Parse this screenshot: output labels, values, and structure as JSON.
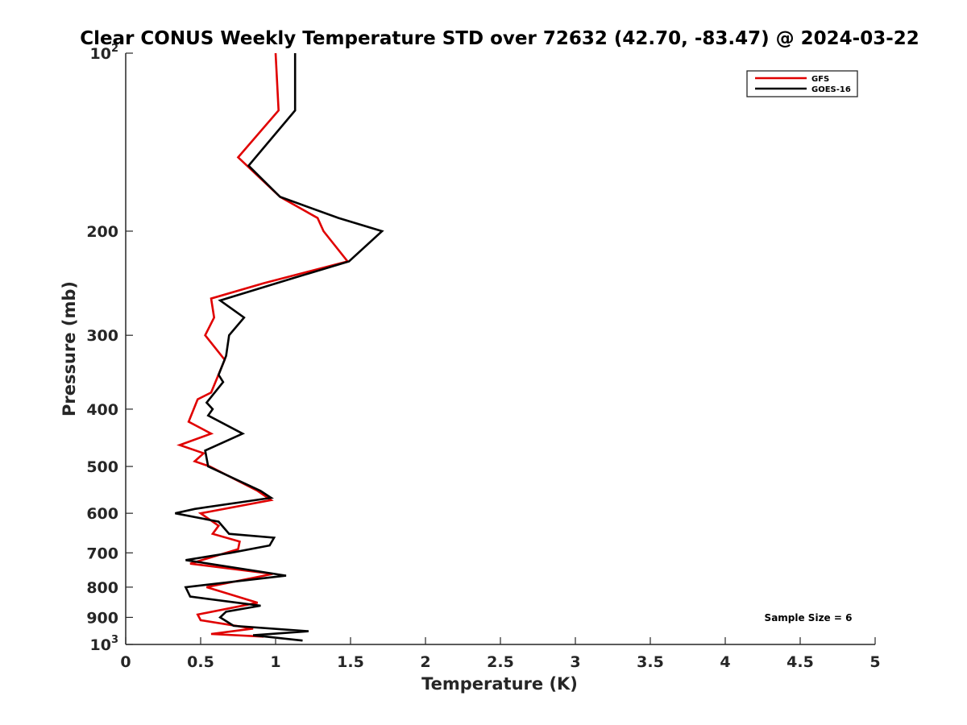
{
  "chart_data": {
    "type": "line",
    "title": "Clear CONUS Weekly Temperature STD over 72632 (42.70, -83.47) @ 2024-03-22",
    "xlabel": "Temperature (K)",
    "ylabel": "Pressure (mb)",
    "xlim": [
      0,
      5
    ],
    "ylim": [
      100,
      1000
    ],
    "y_scale": "log",
    "y_reversed": true,
    "grid": false,
    "legend_position": "top-right",
    "x_ticks": [
      "0",
      "0.5",
      "1",
      "1.5",
      "2",
      "2.5",
      "3",
      "3.5",
      "4",
      "4.5",
      "5"
    ],
    "x_tick_values": [
      0,
      0.5,
      1,
      1.5,
      2,
      2.5,
      3,
      3.5,
      4,
      4.5,
      5
    ],
    "y_ticks": [
      {
        "value": 100,
        "base": "10",
        "exp": "2"
      },
      {
        "value": 200,
        "base": "200",
        "exp": ""
      },
      {
        "value": 300,
        "base": "300",
        "exp": ""
      },
      {
        "value": 400,
        "base": "400",
        "exp": ""
      },
      {
        "value": 500,
        "base": "500",
        "exp": ""
      },
      {
        "value": 600,
        "base": "600",
        "exp": ""
      },
      {
        "value": 700,
        "base": "700",
        "exp": ""
      },
      {
        "value": 800,
        "base": "800",
        "exp": ""
      },
      {
        "value": 900,
        "base": "900",
        "exp": ""
      },
      {
        "value": 1000,
        "base": "10",
        "exp": "3"
      }
    ],
    "series": [
      {
        "name": "GFS",
        "color": "#e00000",
        "points": [
          [
            1.0,
            100
          ],
          [
            1.02,
            125
          ],
          [
            0.75,
            150
          ],
          [
            1.03,
            175
          ],
          [
            1.28,
            190
          ],
          [
            1.32,
            200
          ],
          [
            1.48,
            225
          ],
          [
            0.92,
            245
          ],
          [
            0.57,
            260
          ],
          [
            0.59,
            280
          ],
          [
            0.53,
            300
          ],
          [
            0.66,
            330
          ],
          [
            0.57,
            375
          ],
          [
            0.48,
            385
          ],
          [
            0.42,
            420
          ],
          [
            0.57,
            440
          ],
          [
            0.36,
            460
          ],
          [
            0.52,
            475
          ],
          [
            0.46,
            490
          ],
          [
            0.56,
            500
          ],
          [
            0.88,
            550
          ],
          [
            0.97,
            570
          ],
          [
            0.5,
            600
          ],
          [
            0.62,
            630
          ],
          [
            0.58,
            650
          ],
          [
            0.76,
            670
          ],
          [
            0.75,
            690
          ],
          [
            0.43,
            730
          ],
          [
            0.98,
            760
          ],
          [
            0.54,
            800
          ],
          [
            0.88,
            850
          ],
          [
            0.48,
            890
          ],
          [
            0.5,
            910
          ],
          [
            0.85,
            940
          ],
          [
            0.57,
            960
          ],
          [
            0.92,
            970
          ]
        ]
      },
      {
        "name": "GOES-16",
        "color": "#000000",
        "points": [
          [
            1.13,
            100
          ],
          [
            1.13,
            125
          ],
          [
            0.82,
            155
          ],
          [
            1.03,
            175
          ],
          [
            1.42,
            190
          ],
          [
            1.71,
            200
          ],
          [
            1.49,
            225
          ],
          [
            1.12,
            240
          ],
          [
            0.63,
            262
          ],
          [
            0.79,
            280
          ],
          [
            0.69,
            300
          ],
          [
            0.67,
            325
          ],
          [
            0.62,
            350
          ],
          [
            0.65,
            360
          ],
          [
            0.54,
            390
          ],
          [
            0.58,
            400
          ],
          [
            0.55,
            410
          ],
          [
            0.78,
            440
          ],
          [
            0.53,
            470
          ],
          [
            0.55,
            500
          ],
          [
            0.9,
            550
          ],
          [
            0.97,
            565
          ],
          [
            0.46,
            590
          ],
          [
            0.33,
            600
          ],
          [
            0.62,
            620
          ],
          [
            0.69,
            650
          ],
          [
            0.99,
            660
          ],
          [
            0.96,
            680
          ],
          [
            0.7,
            700
          ],
          [
            0.4,
            720
          ],
          [
            1.07,
            765
          ],
          [
            0.4,
            800
          ],
          [
            0.43,
            830
          ],
          [
            0.9,
            860
          ],
          [
            0.67,
            880
          ],
          [
            0.63,
            900
          ],
          [
            0.72,
            930
          ],
          [
            1.22,
            950
          ],
          [
            0.85,
            965
          ],
          [
            1.18,
            985
          ]
        ]
      }
    ],
    "annotation": "Sample Size = 6"
  }
}
